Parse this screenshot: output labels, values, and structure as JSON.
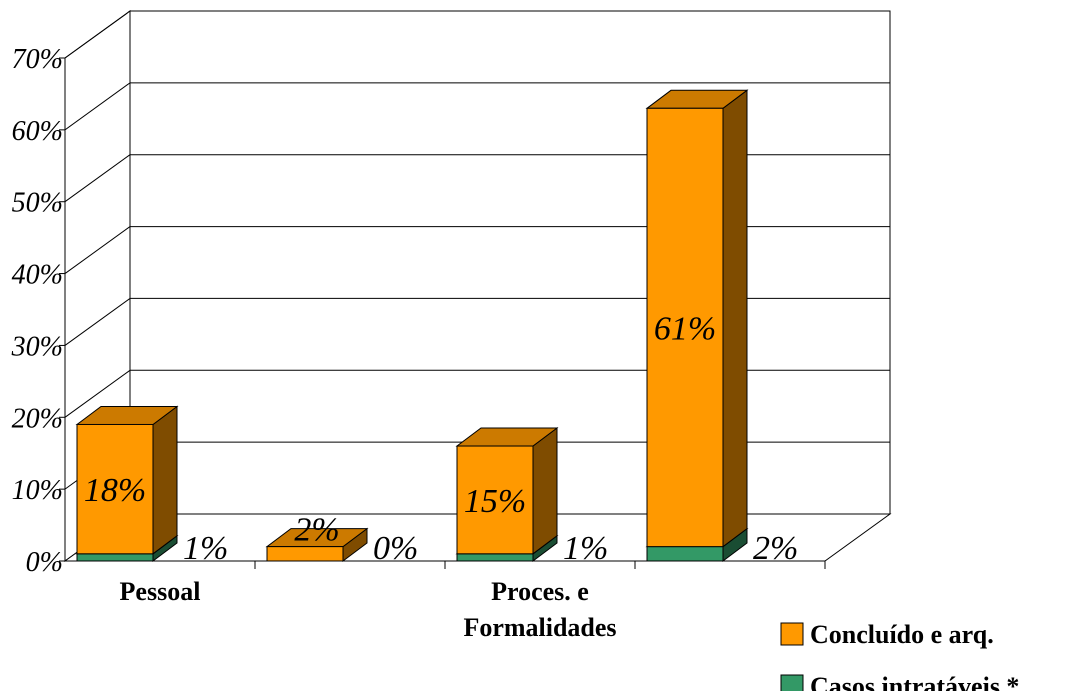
{
  "chart_data": {
    "type": "bar",
    "stacked": true,
    "three_d": true,
    "title": "",
    "xlabel": "",
    "ylabel": "",
    "ylim": [
      0,
      70
    ],
    "yticks": [
      "0%",
      "10%",
      "20%",
      "30%",
      "40%",
      "50%",
      "60%",
      "70%"
    ],
    "grid": true,
    "legend_position": "bottom-right",
    "categories": [
      "Pessoal",
      "",
      "Proces. e Formalidades",
      ""
    ],
    "category_labels": [
      [
        "Pessoal"
      ],
      [],
      [
        "Proces. e",
        "Formalidades"
      ],
      []
    ],
    "series": [
      {
        "name": "Concluído e arq.",
        "values": [
          18,
          2,
          15,
          61
        ],
        "labels": [
          "18%",
          "2%",
          "15%",
          "61%"
        ]
      },
      {
        "name": "Casos intratáveis *",
        "values": [
          1,
          0,
          1,
          2
        ],
        "labels": [
          "1%",
          "0%",
          "1%",
          "2%"
        ]
      }
    ],
    "colors": {
      "orange_front": "#FF9900",
      "orange_top": "#CC7A00",
      "orange_side": "#7F4C00",
      "green_front": "#339966",
      "green_top": "#297A52",
      "green_side": "#1A4D33"
    }
  }
}
